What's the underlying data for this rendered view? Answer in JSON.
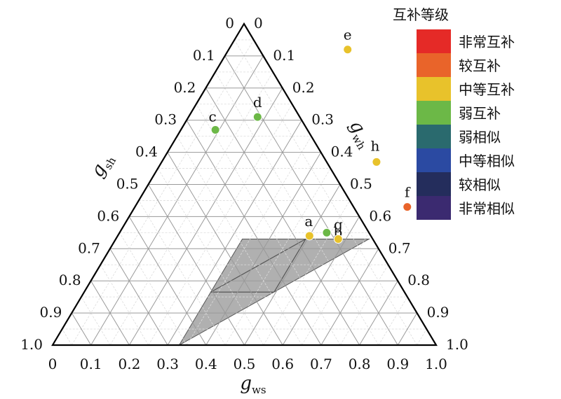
{
  "chart_data": {
    "type": "scatter",
    "subtype": "ternary",
    "axes": {
      "bottom": {
        "label_main": "g",
        "label_sub": "ws",
        "ticks": [
          "0",
          "0.1",
          "0.2",
          "0.3",
          "0.4",
          "0.5",
          "0.6",
          "0.7",
          "0.8",
          "0.9",
          "1.0"
        ]
      },
      "left": {
        "label_main": "g",
        "label_sub": "sh",
        "ticks": [
          "0",
          "0.1",
          "0.2",
          "0.3",
          "0.4",
          "0.5",
          "0.6",
          "0.7",
          "0.8",
          "0.9",
          "1.0"
        ]
      },
      "right": {
        "label_main": "g",
        "label_sub": "wh",
        "ticks": [
          "0",
          "0.1",
          "0.2",
          "0.3",
          "0.4",
          "0.5",
          "0.6",
          "0.7",
          "0.8",
          "0.9",
          "1.0"
        ]
      }
    },
    "grid": true,
    "legend": {
      "title": "互补等级",
      "position": "top-right",
      "entries": [
        {
          "label": "非常互补",
          "color": "#e52a27"
        },
        {
          "label": "较互补",
          "color": "#e9642a"
        },
        {
          "label": "中等互补",
          "color": "#e8c22b"
        },
        {
          "label": "弱互补",
          "color": "#6cb847"
        },
        {
          "label": "弱相似",
          "color": "#2a6a6e"
        },
        {
          "label": "中等相似",
          "color": "#2b4aa2"
        },
        {
          "label": "较相似",
          "color": "#242d5c"
        },
        {
          "label": "非常相似",
          "color": "#3b2a70"
        }
      ]
    },
    "shaded_region": {
      "color": "#b0b0b0",
      "vertices": [
        [
          0.33,
          0.33
        ],
        [
          0.66,
          0.33
        ],
        [
          0.33,
          0.0
        ]
      ]
    },
    "points": [
      {
        "label": "a",
        "ws": 0.5,
        "sh": 0.34,
        "color": "#e8c22b"
      },
      {
        "label": "b",
        "ws": 0.54,
        "sh": 0.35,
        "color": "#6cb847"
      },
      {
        "label": "c",
        "ws": 0.09,
        "sh": 0.67,
        "color": "#6cb847"
      },
      {
        "label": "d",
        "ws": 0.18,
        "sh": 0.71,
        "color": "#6cb847"
      },
      {
        "label": "e",
        "ws": 0.31,
        "sh": 0.92,
        "color": "#e8c22b"
      },
      {
        "label": "f",
        "ws": 0.71,
        "sh": 0.43,
        "color": "#e9642a"
      },
      {
        "label": "g",
        "ws": 0.58,
        "sh": 0.33,
        "color": "#e8c22b"
      },
      {
        "label": "h",
        "ws": 0.56,
        "sh": 0.57,
        "color": "#e8c22b"
      }
    ]
  }
}
